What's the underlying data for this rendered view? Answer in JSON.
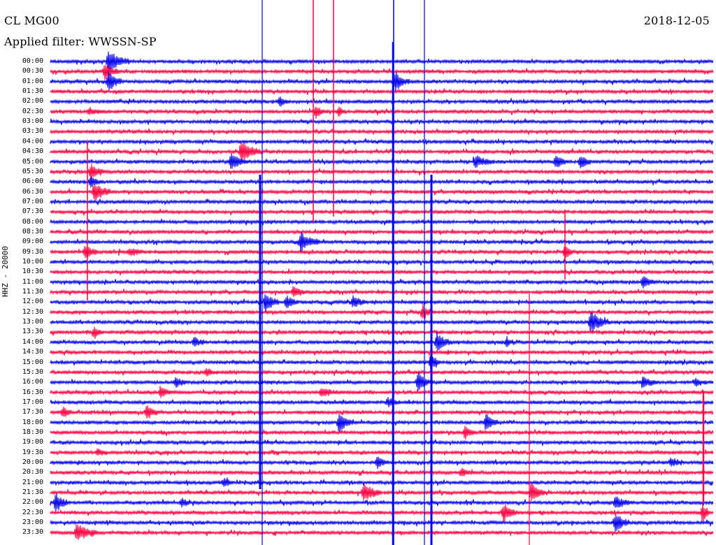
{
  "header": {
    "station": "CL MG00",
    "filter_label": "Applied filter: WWSSN-SP",
    "date": "2018-12-05",
    "channel_axis_label": "HHZ - 20000"
  },
  "colors": {
    "trace_a": "#0000ee",
    "trace_b": "#ff0040",
    "background": "#ffffff",
    "text": "#000000"
  },
  "rows": [
    {
      "time": "00:00",
      "color": "#0000ee"
    },
    {
      "time": "00:30",
      "color": "#ff0040"
    },
    {
      "time": "01:00",
      "color": "#0000ee"
    },
    {
      "time": "01:30",
      "color": "#ff0040"
    },
    {
      "time": "02:00",
      "color": "#0000ee"
    },
    {
      "time": "02:30",
      "color": "#ff0040"
    },
    {
      "time": "03:00",
      "color": "#0000ee"
    },
    {
      "time": "03:30",
      "color": "#ff0040"
    },
    {
      "time": "04:00",
      "color": "#0000ee"
    },
    {
      "time": "04:30",
      "color": "#ff0040"
    },
    {
      "time": "05:00",
      "color": "#0000ee"
    },
    {
      "time": "05:30",
      "color": "#ff0040"
    },
    {
      "time": "06:00",
      "color": "#0000ee"
    },
    {
      "time": "06:30",
      "color": "#ff0040"
    },
    {
      "time": "07:00",
      "color": "#0000ee"
    },
    {
      "time": "07:30",
      "color": "#ff0040"
    },
    {
      "time": "08:00",
      "color": "#0000ee"
    },
    {
      "time": "08:30",
      "color": "#ff0040"
    },
    {
      "time": "09:00",
      "color": "#0000ee"
    },
    {
      "time": "09:30",
      "color": "#ff0040"
    },
    {
      "time": "10:00",
      "color": "#0000ee"
    },
    {
      "time": "10:30",
      "color": "#ff0040"
    },
    {
      "time": "11:00",
      "color": "#0000ee"
    },
    {
      "time": "11:30",
      "color": "#ff0040"
    },
    {
      "time": "12:00",
      "color": "#0000ee"
    },
    {
      "time": "12:30",
      "color": "#ff0040"
    },
    {
      "time": "13:00",
      "color": "#0000ee"
    },
    {
      "time": "13:30",
      "color": "#ff0040"
    },
    {
      "time": "14:00",
      "color": "#0000ee"
    },
    {
      "time": "14:30",
      "color": "#ff0040"
    },
    {
      "time": "15:00",
      "color": "#0000ee"
    },
    {
      "time": "15:30",
      "color": "#ff0040"
    },
    {
      "time": "16:00",
      "color": "#0000ee"
    },
    {
      "time": "16:30",
      "color": "#ff0040"
    },
    {
      "time": "17:00",
      "color": "#0000ee"
    },
    {
      "time": "17:30",
      "color": "#ff0040"
    },
    {
      "time": "18:00",
      "color": "#0000ee"
    },
    {
      "time": "18:30",
      "color": "#ff0040"
    },
    {
      "time": "19:00",
      "color": "#0000ee"
    },
    {
      "time": "19:30",
      "color": "#ff0040"
    },
    {
      "time": "20:00",
      "color": "#0000ee"
    },
    {
      "time": "20:30",
      "color": "#ff0040"
    },
    {
      "time": "21:00",
      "color": "#0000ee"
    },
    {
      "time": "21:30",
      "color": "#ff0040"
    },
    {
      "time": "22:00",
      "color": "#0000ee"
    },
    {
      "time": "22:30",
      "color": "#ff0040"
    },
    {
      "time": "23:00",
      "color": "#0000ee"
    },
    {
      "time": "23:30",
      "color": "#ff0040"
    }
  ]
}
